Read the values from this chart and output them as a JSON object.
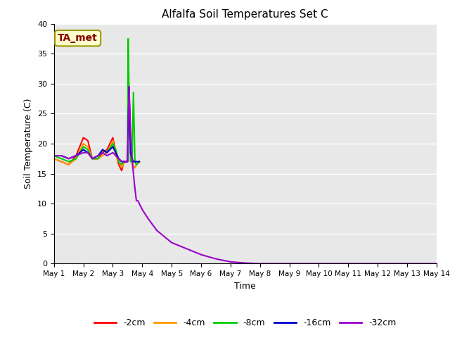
{
  "title": "Alfalfa Soil Temperatures Set C",
  "xlabel": "Time",
  "ylabel": "Soil Temperature (C)",
  "ylim": [
    0,
    40
  ],
  "xlim": [
    0,
    13
  ],
  "xtick_labels": [
    "May 1",
    "May 2",
    "May 3",
    "May 4",
    "May 5",
    "May 6",
    "May 7",
    "May 8",
    "May 9",
    "May 10",
    "May 11",
    "May 12",
    "May 13",
    "May 14"
  ],
  "xtick_positions": [
    0,
    1,
    2,
    3,
    4,
    5,
    6,
    7,
    8,
    9,
    10,
    11,
    12,
    13
  ],
  "background_color": "#e8e8e8",
  "annotation_text": "TA_met",
  "annotation_color": "#880000",
  "annotation_bg": "#ffffcc",
  "annotation_edge": "#999900",
  "series": {
    "-2cm": {
      "color": "#ff0000",
      "x": [
        0.0,
        0.25,
        0.5,
        0.75,
        1.0,
        1.15,
        1.3,
        1.5,
        1.65,
        1.8,
        2.0,
        2.1,
        2.2,
        2.3,
        2.35,
        2.4,
        2.45,
        2.5,
        2.55,
        2.6,
        2.65,
        2.7,
        2.75,
        2.8,
        2.9
      ],
      "y": [
        17.5,
        17.0,
        16.5,
        18.0,
        21.0,
        20.5,
        17.5,
        17.5,
        18.5,
        19.0,
        21.0,
        18.5,
        16.5,
        15.5,
        16.5,
        17.0,
        17.0,
        17.0,
        29.0,
        20.0,
        17.5,
        16.0,
        16.0,
        16.5,
        17.0
      ]
    },
    "-4cm": {
      "color": "#ff9900",
      "x": [
        0.0,
        0.25,
        0.5,
        0.75,
        1.0,
        1.15,
        1.3,
        1.5,
        1.65,
        1.8,
        2.0,
        2.1,
        2.2,
        2.3,
        2.35,
        2.4,
        2.45,
        2.5,
        2.55,
        2.6,
        2.65,
        2.7,
        2.75,
        2.8,
        2.9
      ],
      "y": [
        17.5,
        17.0,
        16.5,
        17.5,
        20.0,
        19.5,
        17.5,
        17.5,
        18.0,
        18.5,
        20.5,
        18.0,
        17.0,
        16.0,
        16.5,
        17.0,
        17.0,
        17.0,
        28.5,
        19.5,
        17.5,
        16.0,
        16.0,
        16.5,
        17.0
      ]
    },
    "-8cm": {
      "color": "#00cc00",
      "x": [
        0.0,
        0.25,
        0.5,
        0.75,
        1.0,
        1.15,
        1.3,
        1.5,
        1.65,
        1.8,
        2.0,
        2.1,
        2.2,
        2.3,
        2.35,
        2.4,
        2.45,
        2.5,
        2.52,
        2.55,
        2.6,
        2.65,
        2.7,
        2.75,
        2.8,
        2.9
      ],
      "y": [
        18.0,
        17.5,
        17.0,
        17.5,
        19.5,
        19.0,
        17.5,
        17.5,
        19.0,
        18.5,
        20.0,
        19.0,
        17.0,
        16.5,
        17.0,
        17.0,
        17.0,
        17.0,
        37.5,
        29.0,
        17.0,
        17.0,
        28.5,
        17.0,
        16.5,
        17.0
      ]
    },
    "-16cm": {
      "color": "#0000cc",
      "x": [
        0.0,
        0.25,
        0.5,
        0.75,
        1.0,
        1.15,
        1.3,
        1.5,
        1.65,
        1.8,
        2.0,
        2.1,
        2.2,
        2.3,
        2.35,
        2.4,
        2.45,
        2.5,
        2.55,
        2.6,
        2.65,
        2.7,
        2.75,
        2.8,
        2.9
      ],
      "y": [
        18.0,
        18.0,
        17.5,
        18.0,
        19.0,
        18.5,
        17.5,
        18.0,
        19.0,
        18.5,
        19.5,
        18.5,
        17.5,
        17.0,
        17.0,
        17.0,
        17.0,
        17.0,
        29.5,
        18.5,
        17.5,
        17.0,
        17.0,
        17.0,
        17.0
      ]
    },
    "-32cm": {
      "color": "#9900cc",
      "x": [
        0.0,
        0.25,
        0.5,
        0.75,
        1.0,
        1.15,
        1.3,
        1.5,
        1.65,
        1.8,
        2.0,
        2.1,
        2.2,
        2.3,
        2.35,
        2.4,
        2.45,
        2.5,
        2.55,
        2.6,
        2.65,
        2.7,
        2.75,
        2.8,
        2.85,
        2.9,
        3.0,
        3.2,
        3.5,
        4.0,
        4.5,
        5.0,
        5.5,
        6.0,
        6.5,
        7.0,
        7.5,
        8.0,
        13.0
      ],
      "y": [
        18.0,
        18.0,
        17.5,
        18.0,
        18.5,
        18.5,
        17.5,
        18.0,
        18.5,
        18.0,
        18.5,
        18.0,
        17.5,
        17.0,
        17.0,
        17.0,
        17.0,
        17.0,
        29.5,
        22.0,
        17.5,
        15.0,
        12.5,
        10.5,
        10.5,
        10.0,
        9.0,
        7.5,
        5.5,
        3.5,
        2.5,
        1.5,
        0.8,
        0.3,
        0.1,
        0.0,
        0.0,
        0.0,
        0.0
      ]
    }
  }
}
